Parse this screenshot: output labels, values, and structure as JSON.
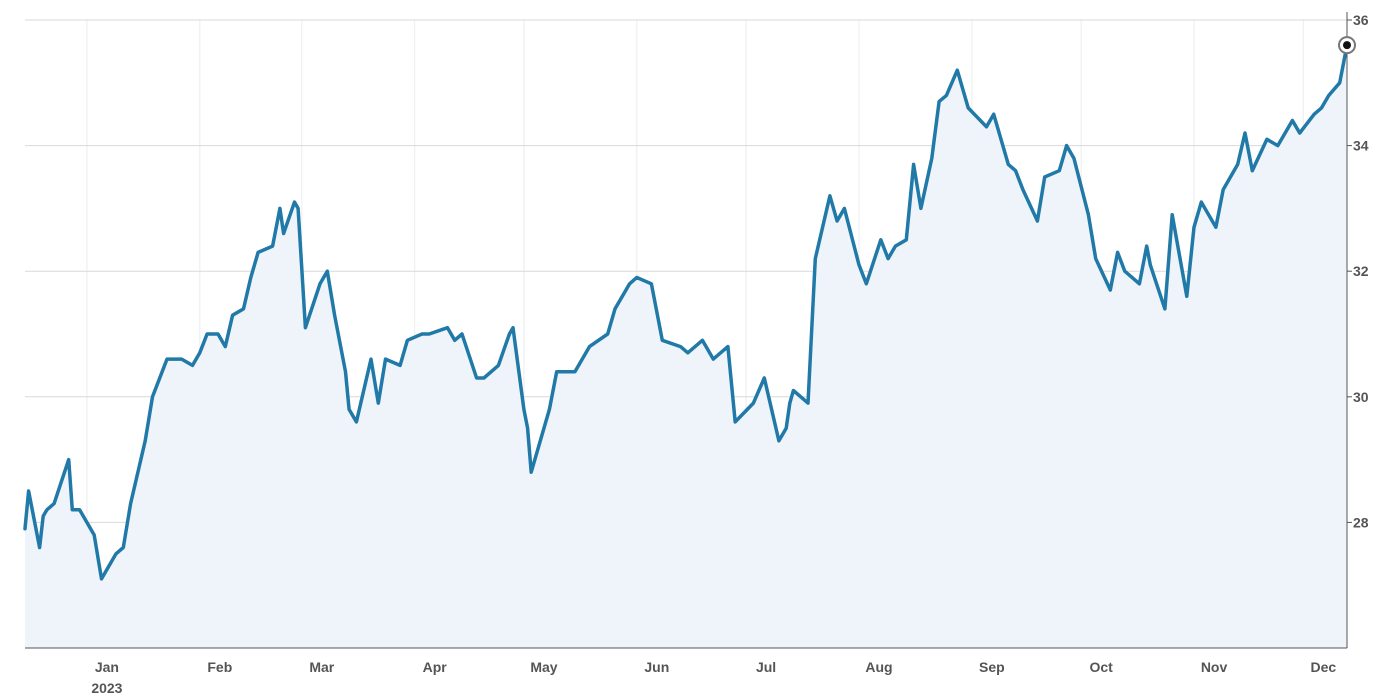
{
  "colors": {
    "line": "#2179a8",
    "area": "#eef4fa",
    "grid_horizontal": "#d9d9d9",
    "grid_vertical": "#ececec",
    "axis": "#555555",
    "tick_text": "#555555"
  },
  "chart_data": {
    "type": "area",
    "title": "",
    "xlabel": "",
    "ylabel": "",
    "ylim": [
      26,
      36
    ],
    "xlim": [
      "2022-12-15",
      "2023-12-13"
    ],
    "y_axis_position": "right",
    "y_ticks": [
      {
        "value": 36,
        "label": "36"
      },
      {
        "value": 34,
        "label": "34"
      },
      {
        "value": 32,
        "label": "32"
      },
      {
        "value": 30,
        "label": "30"
      },
      {
        "value": 28,
        "label": "28"
      }
    ],
    "x_ticks": [
      {
        "date": "2023-01-01",
        "label": "Jan",
        "sublabel": "2023"
      },
      {
        "date": "2023-02-01",
        "label": "Feb"
      },
      {
        "date": "2023-03-01",
        "label": "Mar"
      },
      {
        "date": "2023-04-01",
        "label": "Apr"
      },
      {
        "date": "2023-05-01",
        "label": "May"
      },
      {
        "date": "2023-06-01",
        "label": "Jun"
      },
      {
        "date": "2023-07-01",
        "label": "Jul"
      },
      {
        "date": "2023-08-01",
        "label": "Aug"
      },
      {
        "date": "2023-09-01",
        "label": "Sep"
      },
      {
        "date": "2023-10-01",
        "label": "Oct"
      },
      {
        "date": "2023-11-01",
        "label": "Nov"
      },
      {
        "date": "2023-12-01",
        "label": "Dec"
      }
    ],
    "grid": true,
    "legend": false,
    "series": [
      {
        "x": [
          "2022-12-15",
          "2022-12-16",
          "2022-12-19",
          "2022-12-20",
          "2022-12-21",
          "2022-12-23",
          "2022-12-27",
          "2022-12-28",
          "2022-12-30",
          "2023-01-03",
          "2023-01-05",
          "2023-01-09",
          "2023-01-11",
          "2023-01-13",
          "2023-01-17",
          "2023-01-19",
          "2023-01-23",
          "2023-01-25",
          "2023-01-27",
          "2023-01-30",
          "2023-02-01",
          "2023-02-03",
          "2023-02-06",
          "2023-02-08",
          "2023-02-10",
          "2023-02-13",
          "2023-02-15",
          "2023-02-17",
          "2023-02-21",
          "2023-02-23",
          "2023-02-24",
          "2023-02-27",
          "2023-02-28",
          "2023-03-02",
          "2023-03-06",
          "2023-03-08",
          "2023-03-10",
          "2023-03-13",
          "2023-03-14",
          "2023-03-16",
          "2023-03-20",
          "2023-03-22",
          "2023-03-24",
          "2023-03-28",
          "2023-03-30",
          "2023-04-03",
          "2023-04-05",
          "2023-04-10",
          "2023-04-12",
          "2023-04-14",
          "2023-04-18",
          "2023-04-20",
          "2023-04-24",
          "2023-04-27",
          "2023-04-28",
          "2023-05-01",
          "2023-05-02",
          "2023-05-03",
          "2023-05-05",
          "2023-05-08",
          "2023-05-10",
          "2023-05-15",
          "2023-05-19",
          "2023-05-24",
          "2023-05-26",
          "2023-05-30",
          "2023-06-01",
          "2023-06-05",
          "2023-06-08",
          "2023-06-13",
          "2023-06-15",
          "2023-06-19",
          "2023-06-22",
          "2023-06-26",
          "2023-06-28",
          "2023-07-03",
          "2023-07-06",
          "2023-07-10",
          "2023-07-12",
          "2023-07-13",
          "2023-07-14",
          "2023-07-18",
          "2023-07-20",
          "2023-07-24",
          "2023-07-26",
          "2023-07-28",
          "2023-08-01",
          "2023-08-03",
          "2023-08-07",
          "2023-08-09",
          "2023-08-11",
          "2023-08-14",
          "2023-08-16",
          "2023-08-18",
          "2023-08-21",
          "2023-08-23",
          "2023-08-25",
          "2023-08-28",
          "2023-08-31",
          "2023-09-05",
          "2023-09-07",
          "2023-09-11",
          "2023-09-13",
          "2023-09-15",
          "2023-09-19",
          "2023-09-21",
          "2023-09-25",
          "2023-09-27",
          "2023-09-29",
          "2023-10-03",
          "2023-10-05",
          "2023-10-09",
          "2023-10-11",
          "2023-10-13",
          "2023-10-17",
          "2023-10-19",
          "2023-10-20",
          "2023-10-24",
          "2023-10-26",
          "2023-10-30",
          "2023-11-01",
          "2023-11-03",
          "2023-11-07",
          "2023-11-09",
          "2023-11-13",
          "2023-11-15",
          "2023-11-17",
          "2023-11-21",
          "2023-11-24",
          "2023-11-28",
          "2023-11-30",
          "2023-12-04",
          "2023-12-06",
          "2023-12-08",
          "2023-12-11",
          "2023-12-13"
        ],
        "y": [
          27.9,
          28.5,
          27.6,
          28.1,
          28.2,
          28.3,
          29.0,
          28.2,
          28.2,
          27.8,
          27.1,
          27.5,
          27.6,
          28.3,
          29.3,
          30.0,
          30.6,
          30.6,
          30.6,
          30.5,
          30.7,
          31.0,
          31.0,
          30.8,
          31.3,
          31.4,
          31.9,
          32.3,
          32.4,
          33.0,
          32.6,
          33.1,
          33.0,
          31.1,
          31.8,
          32.0,
          31.3,
          30.4,
          29.8,
          29.6,
          30.6,
          29.9,
          30.6,
          30.5,
          30.9,
          31.0,
          31.0,
          31.1,
          30.9,
          31.0,
          30.3,
          30.3,
          30.5,
          31.0,
          31.1,
          29.8,
          29.5,
          28.8,
          29.2,
          29.8,
          30.4,
          30.4,
          30.8,
          31.0,
          31.4,
          31.8,
          31.9,
          31.8,
          30.9,
          30.8,
          30.7,
          30.9,
          30.6,
          30.8,
          29.6,
          29.9,
          30.3,
          29.3,
          29.5,
          29.9,
          30.1,
          29.9,
          32.2,
          33.2,
          32.8,
          33.0,
          32.1,
          31.8,
          32.5,
          32.2,
          32.4,
          32.5,
          33.7,
          33.0,
          33.8,
          34.7,
          34.8,
          35.2,
          34.6,
          34.3,
          34.5,
          33.7,
          33.6,
          33.3,
          32.8,
          33.5,
          33.6,
          34.0,
          33.8,
          32.9,
          32.2,
          31.7,
          32.3,
          32.0,
          31.8,
          32.4,
          32.1,
          31.4,
          32.9,
          31.6,
          32.7,
          33.1,
          32.7,
          33.3,
          33.7,
          34.2,
          33.6,
          34.1,
          34.0,
          34.4,
          34.2,
          34.5,
          34.6,
          34.8,
          35.0,
          35.6
        ]
      }
    ],
    "last_value_marker": true
  }
}
